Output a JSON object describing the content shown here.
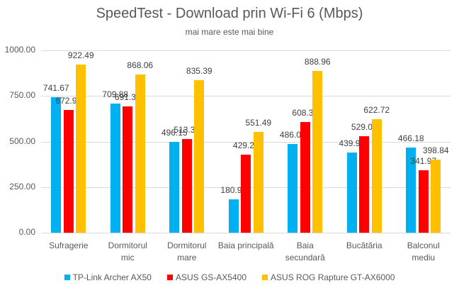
{
  "chart_data": {
    "type": "bar",
    "title": "SpeedTest - Download prin Wi-Fi 6 (Mbps)",
    "subtitle": "mai mare este mai bine",
    "xlabel": "",
    "ylabel": "",
    "ylim": [
      0,
      1000
    ],
    "yticks": [
      "0.00",
      "250.00",
      "500.00",
      "750.00",
      "1000.00"
    ],
    "grid": true,
    "legend_position": "bottom",
    "categories": [
      "Sufragerie",
      "Dormitorul mic",
      "Dormitorul mare",
      "Baia principală",
      "Baia secundară",
      "Bucătăria",
      "Balconul mediu"
    ],
    "category_lines": [
      [
        "Sufragerie"
      ],
      [
        "Dormitorul",
        "mic"
      ],
      [
        "Dormitorul",
        "mare"
      ],
      [
        "Baia principală"
      ],
      [
        "Baia",
        "secundară"
      ],
      [
        "Bucătăria"
      ],
      [
        "Balconul",
        "mediu"
      ]
    ],
    "series": [
      {
        "name": "TP-Link Archer AX50",
        "color": "#00b0f0",
        "values": [
          741.67,
          709.88,
          496.15,
          180.96,
          486.09,
          439.91,
          466.18
        ]
      },
      {
        "name": "ASUS GS-AX5400",
        "color": "#ff0000",
        "values": [
          672.94,
          691.34,
          513.39,
          429.29,
          608.33,
          529.04,
          341.97
        ]
      },
      {
        "name": "ASUS ROG Rapture GT-AX6000",
        "color": "#ffc000",
        "values": [
          922.49,
          868.06,
          835.39,
          551.49,
          888.96,
          622.72,
          398.84
        ]
      }
    ]
  }
}
